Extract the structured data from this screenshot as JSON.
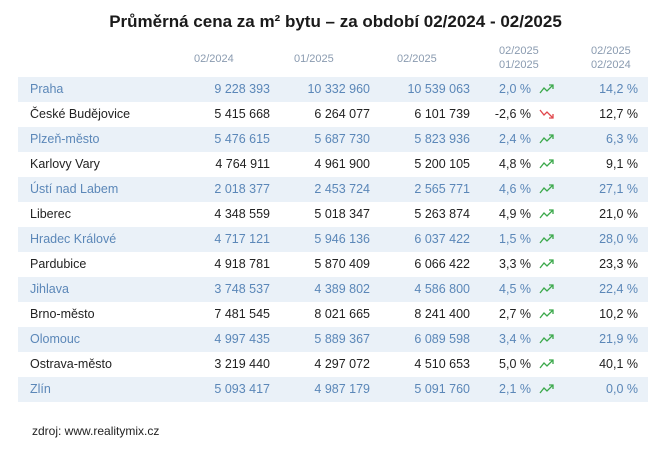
{
  "title": "Průměrná cena za m² bytu – za období 02/2024  -  02/2025",
  "columns": {
    "v1": "02/2024",
    "v2": "01/2025",
    "v3": "02/2025",
    "ch_top": "02/2025",
    "ch_bottom": "01/2025",
    "yr_top": "02/2025",
    "yr_bottom": "02/2024"
  },
  "rows": [
    {
      "city": "Praha",
      "v1": "9 228 393",
      "v2": "10 332 960",
      "v3": "10 539 063",
      "ch": "2,0 %",
      "trend": "up",
      "yr": "14,2 %"
    },
    {
      "city": "České Budějovice",
      "v1": "5 415 668",
      "v2": "6 264 077",
      "v3": "6 101 739",
      "ch": "-2,6 %",
      "trend": "down",
      "yr": "12,7 %"
    },
    {
      "city": "Plzeň-město",
      "v1": "5 476 615",
      "v2": "5 687 730",
      "v3": "5 823 936",
      "ch": "2,4 %",
      "trend": "up",
      "yr": "6,3 %"
    },
    {
      "city": "Karlovy Vary",
      "v1": "4 764 911",
      "v2": "4 961 900",
      "v3": "5 200 105",
      "ch": "4,8 %",
      "trend": "up",
      "yr": "9,1 %"
    },
    {
      "city": "Ústí nad Labem",
      "v1": "2 018 377",
      "v2": "2 453 724",
      "v3": "2 565 771",
      "ch": "4,6 %",
      "trend": "up",
      "yr": "27,1 %"
    },
    {
      "city": "Liberec",
      "v1": "4 348 559",
      "v2": "5 018 347",
      "v3": "5 263 874",
      "ch": "4,9 %",
      "trend": "up",
      "yr": "21,0 %"
    },
    {
      "city": "Hradec Králové",
      "v1": "4 717 121",
      "v2": "5 946 136",
      "v3": "6 037 422",
      "ch": "1,5 %",
      "trend": "up",
      "yr": "28,0 %"
    },
    {
      "city": "Pardubice",
      "v1": "4 918 781",
      "v2": "5 870 409",
      "v3": "6 066 422",
      "ch": "3,3 %",
      "trend": "up",
      "yr": "23,3 %"
    },
    {
      "city": "Jihlava",
      "v1": "3 748 537",
      "v2": "4 389 802",
      "v3": "4 586 800",
      "ch": "4,5 %",
      "trend": "up",
      "yr": "22,4 %"
    },
    {
      "city": "Brno-město",
      "v1": "7 481 545",
      "v2": "8 021 665",
      "v3": "8 241 400",
      "ch": "2,7 %",
      "trend": "up",
      "yr": "10,2 %"
    },
    {
      "city": "Olomouc",
      "v1": "4 997 435",
      "v2": "5 889 367",
      "v3": "6 089 598",
      "ch": "3,4 %",
      "trend": "up",
      "yr": "21,9 %"
    },
    {
      "city": "Ostrava-město",
      "v1": "3 219 440",
      "v2": "4 297 072",
      "v3": "4 510 653",
      "ch": "5,0 %",
      "trend": "up",
      "yr": "40,1 %"
    },
    {
      "city": "Zlín",
      "v1": "5 093 417",
      "v2": "4 987 179",
      "v3": "5 091 760",
      "ch": "2,1 %",
      "trend": "up",
      "yr": "0,0 %"
    }
  ],
  "source": "zdroj: www.realitymix.cz",
  "colors": {
    "trend_up": "#3aa84a",
    "trend_down": "#e0474c",
    "odd_row_bg": "#eaf1f8",
    "odd_row_text": "#5b87b8"
  }
}
